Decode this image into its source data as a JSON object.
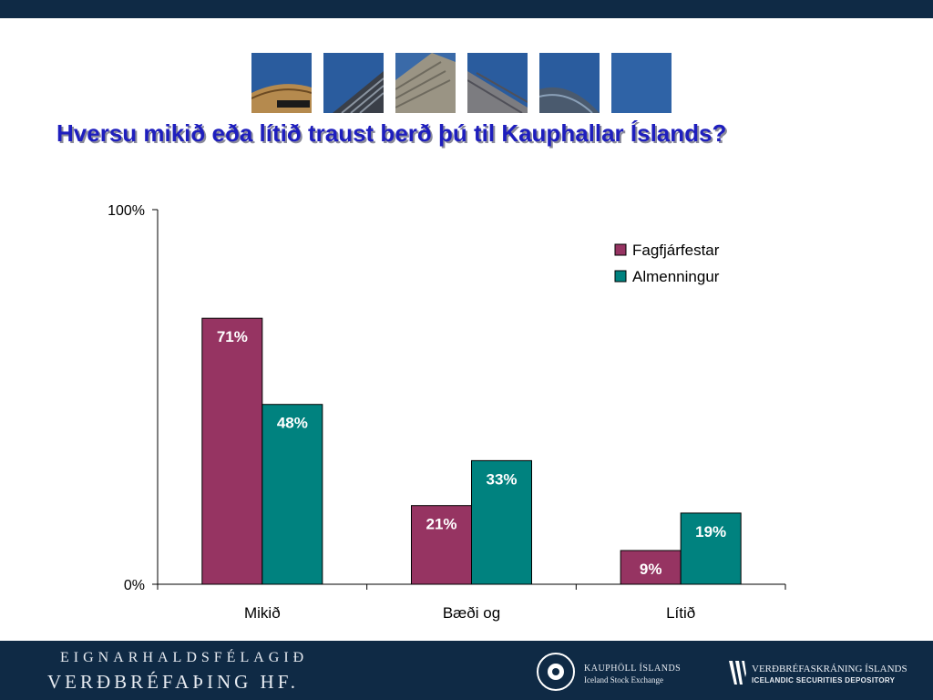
{
  "colors": {
    "header_bar": "#0f2a45",
    "title_text": "#1e1ebe",
    "series_1": "#963462",
    "series_2": "#00827f",
    "footer_bg": "#0f2a45"
  },
  "slide": {
    "title": "Hversu mikið eða lítið traust berð þú til Kauphallar Íslands?"
  },
  "chart_data": {
    "type": "bar",
    "categories": [
      "Mikið",
      "Bæði og",
      "Lítið"
    ],
    "series": [
      {
        "name": "Fagfjárfestar",
        "values": [
          71,
          21,
          9
        ],
        "labels": [
          "71%",
          "21%",
          "9%"
        ],
        "color": "#963462"
      },
      {
        "name": "Almenningur",
        "values": [
          48,
          33,
          19
        ],
        "labels": [
          "48%",
          "33%",
          "19%"
        ],
        "color": "#00827f"
      }
    ],
    "ylim": [
      0,
      100
    ],
    "yticks": [
      "0%",
      "100%"
    ],
    "grid": false,
    "legend": "top-right",
    "data_labels": "inside-top"
  },
  "footer": {
    "brand_line1": "EIGNARHALDSFÉLAGIÐ",
    "brand_line2": "VERÐBRÉFAÞING HF.",
    "exchange_name": "KAUPHÖLL ÍSLANDS",
    "exchange_sub": "Iceland Stock Exchange",
    "depository_name": "VERÐBRÉFASKRÁNING ÍSLANDS",
    "depository_sub": "ICELANDIC SECURITIES DEPOSITORY"
  }
}
